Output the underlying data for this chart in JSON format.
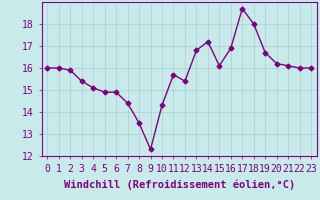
{
  "x": [
    0,
    1,
    2,
    3,
    4,
    5,
    6,
    7,
    8,
    9,
    10,
    11,
    12,
    13,
    14,
    15,
    16,
    17,
    18,
    19,
    20,
    21,
    22,
    23
  ],
  "y": [
    16.0,
    16.0,
    15.9,
    15.4,
    15.1,
    14.9,
    14.9,
    14.4,
    13.5,
    12.3,
    14.3,
    15.7,
    15.4,
    16.8,
    17.2,
    16.1,
    16.9,
    18.7,
    18.0,
    16.7,
    16.2,
    16.1,
    16.0,
    16.0
  ],
  "line_color": "#800080",
  "marker": "D",
  "markersize": 2.5,
  "linewidth": 1,
  "bg_color": "#c8eaea",
  "grid_color": "#a8d0d0",
  "xlabel": "Windchill (Refroidissement éolien,°C)",
  "xlabel_fontsize": 7.5,
  "tick_fontsize": 7,
  "ylim": [
    12,
    19
  ],
  "yticks": [
    12,
    13,
    14,
    15,
    16,
    17,
    18
  ],
  "xlim": [
    -0.5,
    23.5
  ],
  "xticks": [
    0,
    1,
    2,
    3,
    4,
    5,
    6,
    7,
    8,
    9,
    10,
    11,
    12,
    13,
    14,
    15,
    16,
    17,
    18,
    19,
    20,
    21,
    22,
    23
  ]
}
